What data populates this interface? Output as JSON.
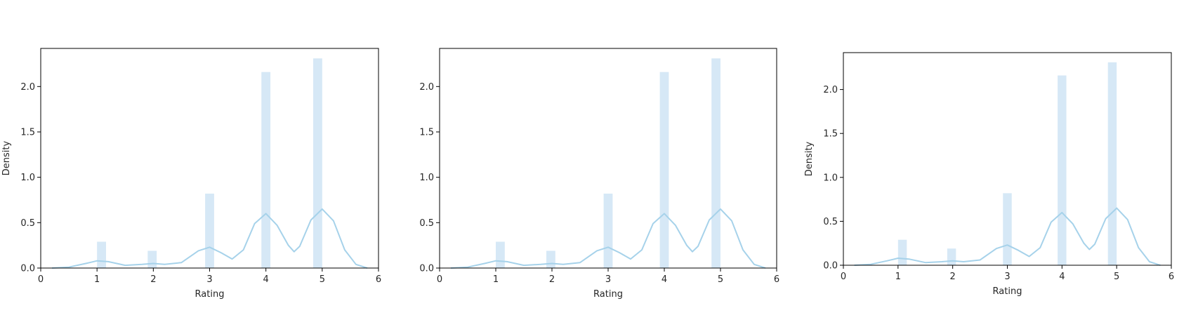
{
  "chart_data": [
    {
      "type": "histogram+kde",
      "xlabel": "Rating",
      "ylabel": "Density",
      "xlim": [
        0,
        6
      ],
      "ylim": [
        0,
        2.42
      ],
      "xticks": [
        "0",
        "1",
        "2",
        "3",
        "4",
        "5",
        "6"
      ],
      "yticks": [
        "0.0",
        "0.5",
        "1.0",
        "1.5",
        "2.0"
      ],
      "bar_color": "#d6e8f6",
      "line_color": "#a6d2ea",
      "bars": [
        {
          "x0": 1.0,
          "x1": 1.16,
          "density": 0.29
        },
        {
          "x0": 1.9,
          "x1": 2.06,
          "density": 0.19
        },
        {
          "x0": 2.92,
          "x1": 3.08,
          "density": 0.82
        },
        {
          "x0": 3.92,
          "x1": 4.08,
          "density": 2.16
        },
        {
          "x0": 4.84,
          "x1": 5.0,
          "density": 2.31
        }
      ],
      "kde": [
        [
          0.2,
          0.0
        ],
        [
          0.5,
          0.01
        ],
        [
          0.8,
          0.05
        ],
        [
          1.0,
          0.08
        ],
        [
          1.2,
          0.07
        ],
        [
          1.5,
          0.03
        ],
        [
          1.8,
          0.04
        ],
        [
          2.0,
          0.05
        ],
        [
          2.2,
          0.04
        ],
        [
          2.5,
          0.06
        ],
        [
          2.8,
          0.19
        ],
        [
          3.0,
          0.23
        ],
        [
          3.2,
          0.17
        ],
        [
          3.4,
          0.1
        ],
        [
          3.6,
          0.2
        ],
        [
          3.8,
          0.49
        ],
        [
          4.0,
          0.6
        ],
        [
          4.2,
          0.47
        ],
        [
          4.4,
          0.25
        ],
        [
          4.5,
          0.18
        ],
        [
          4.6,
          0.24
        ],
        [
          4.8,
          0.53
        ],
        [
          5.0,
          0.65
        ],
        [
          5.2,
          0.52
        ],
        [
          5.4,
          0.2
        ],
        [
          5.6,
          0.04
        ],
        [
          5.8,
          0.0
        ]
      ]
    },
    {
      "type": "histogram+kde",
      "xlabel": "Rating",
      "ylabel": "",
      "xlim": [
        0,
        6
      ],
      "ylim": [
        0,
        2.42
      ],
      "xticks": [
        "0",
        "1",
        "2",
        "3",
        "4",
        "5",
        "6"
      ],
      "yticks": [
        "0.0",
        "0.5",
        "1.0",
        "1.5",
        "2.0"
      ],
      "bar_color": "#d6e8f6",
      "line_color": "#a6d2ea",
      "bars": [
        {
          "x0": 1.0,
          "x1": 1.16,
          "density": 0.29
        },
        {
          "x0": 1.9,
          "x1": 2.06,
          "density": 0.19
        },
        {
          "x0": 2.92,
          "x1": 3.08,
          "density": 0.82
        },
        {
          "x0": 3.92,
          "x1": 4.08,
          "density": 2.16
        },
        {
          "x0": 4.84,
          "x1": 5.0,
          "density": 2.31
        }
      ],
      "kde": [
        [
          0.2,
          0.0
        ],
        [
          0.5,
          0.01
        ],
        [
          0.8,
          0.05
        ],
        [
          1.0,
          0.08
        ],
        [
          1.2,
          0.07
        ],
        [
          1.5,
          0.03
        ],
        [
          1.8,
          0.04
        ],
        [
          2.0,
          0.05
        ],
        [
          2.2,
          0.04
        ],
        [
          2.5,
          0.06
        ],
        [
          2.8,
          0.19
        ],
        [
          3.0,
          0.23
        ],
        [
          3.2,
          0.17
        ],
        [
          3.4,
          0.1
        ],
        [
          3.6,
          0.2
        ],
        [
          3.8,
          0.49
        ],
        [
          4.0,
          0.6
        ],
        [
          4.2,
          0.47
        ],
        [
          4.4,
          0.25
        ],
        [
          4.5,
          0.18
        ],
        [
          4.6,
          0.24
        ],
        [
          4.8,
          0.53
        ],
        [
          5.0,
          0.65
        ],
        [
          5.2,
          0.52
        ],
        [
          5.4,
          0.2
        ],
        [
          5.6,
          0.04
        ],
        [
          5.8,
          0.0
        ]
      ]
    },
    {
      "type": "histogram+kde",
      "xlabel": "Rating",
      "ylabel": "Density",
      "xlim": [
        0,
        6
      ],
      "ylim": [
        0,
        2.42
      ],
      "xticks": [
        "0",
        "1",
        "2",
        "3",
        "4",
        "5",
        "6"
      ],
      "yticks": [
        "0.0",
        "0.5",
        "1.0",
        "1.5",
        "2.0"
      ],
      "bar_color": "#d6e8f6",
      "line_color": "#a6d2ea",
      "bars": [
        {
          "x0": 1.0,
          "x1": 1.16,
          "density": 0.29
        },
        {
          "x0": 1.9,
          "x1": 2.06,
          "density": 0.19
        },
        {
          "x0": 2.92,
          "x1": 3.08,
          "density": 0.82
        },
        {
          "x0": 3.92,
          "x1": 4.08,
          "density": 2.16
        },
        {
          "x0": 4.84,
          "x1": 5.0,
          "density": 2.31
        }
      ],
      "kde": [
        [
          0.2,
          0.0
        ],
        [
          0.5,
          0.01
        ],
        [
          0.8,
          0.05
        ],
        [
          1.0,
          0.08
        ],
        [
          1.2,
          0.07
        ],
        [
          1.5,
          0.03
        ],
        [
          1.8,
          0.04
        ],
        [
          2.0,
          0.05
        ],
        [
          2.2,
          0.04
        ],
        [
          2.5,
          0.06
        ],
        [
          2.8,
          0.19
        ],
        [
          3.0,
          0.23
        ],
        [
          3.2,
          0.17
        ],
        [
          3.4,
          0.1
        ],
        [
          3.6,
          0.2
        ],
        [
          3.8,
          0.49
        ],
        [
          4.0,
          0.6
        ],
        [
          4.2,
          0.47
        ],
        [
          4.4,
          0.25
        ],
        [
          4.5,
          0.18
        ],
        [
          4.6,
          0.24
        ],
        [
          4.8,
          0.53
        ],
        [
          5.0,
          0.65
        ],
        [
          5.2,
          0.52
        ],
        [
          5.4,
          0.2
        ],
        [
          5.6,
          0.04
        ],
        [
          5.8,
          0.0
        ]
      ]
    }
  ]
}
